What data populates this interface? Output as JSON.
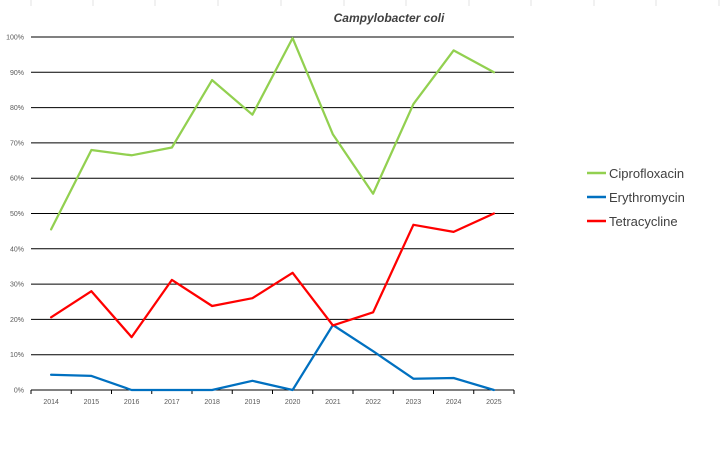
{
  "chart_data": {
    "type": "line",
    "title": "Campylobacter coli",
    "xlabel": "",
    "ylabel": "",
    "categories": [
      "2014",
      "2015",
      "2016",
      "2017",
      "2018",
      "2019",
      "2020",
      "2021",
      "2022",
      "2023",
      "2024",
      "2025"
    ],
    "ylim": [
      0,
      100
    ],
    "yticks": [
      0,
      10,
      20,
      30,
      40,
      50,
      60,
      70,
      80,
      90,
      100
    ],
    "ytick_labels": [
      "0%",
      "10%",
      "20%",
      "30%",
      "40%",
      "50%",
      "60%",
      "70%",
      "80%",
      "90%",
      "100%"
    ],
    "grid": "horizontal",
    "legend_position": "right",
    "series": [
      {
        "name": "Ciprofloxacin",
        "color": "#92d050",
        "values": [
          45.5,
          68,
          66.5,
          68.7,
          87.8,
          78,
          99.7,
          72.4,
          55.6,
          81,
          96.2,
          90
        ]
      },
      {
        "name": "Erythromycin",
        "color": "#0070c0",
        "values": [
          4.3,
          4,
          0,
          0,
          0,
          2.6,
          0,
          18.4,
          11,
          3.2,
          3.4,
          0
        ]
      },
      {
        "name": "Tetracycline",
        "color": "#ff0000",
        "values": [
          20.6,
          28,
          15,
          31.2,
          23.8,
          26,
          33.2,
          18.3,
          22,
          46.8,
          44.8,
          50
        ]
      }
    ]
  }
}
